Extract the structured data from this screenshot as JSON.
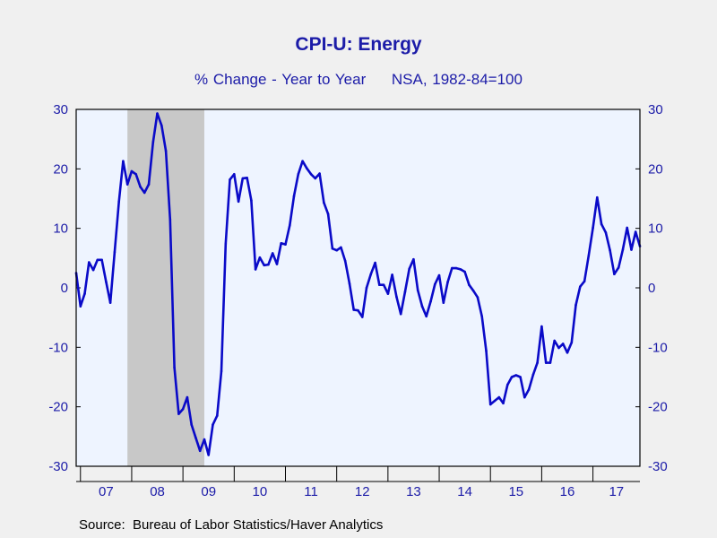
{
  "chart_data": {
    "type": "line",
    "title": "CPI-U: Energy",
    "subtitle": "% Change - Year to Year     NSA, 1982-84=100",
    "source": "Source:  Bureau of Labor Statistics/Haver Analytics",
    "ylim": [
      -30,
      30
    ],
    "yticks": [
      30,
      20,
      10,
      0,
      -10,
      -20,
      -30
    ],
    "ytick_labels": [
      "30",
      "20",
      "10",
      "0",
      "-10",
      "-20",
      "-30"
    ],
    "x_start": "2006-12",
    "x_end": "2017-12",
    "x_categories": [
      "07",
      "08",
      "09",
      "10",
      "11",
      "12",
      "13",
      "14",
      "15",
      "16",
      "17"
    ],
    "recession_shading": [
      {
        "start": "2007-12",
        "end": "2009-06"
      }
    ],
    "grid": false,
    "colors": {
      "line": "#0a0ac8",
      "text": "#1c1ca8",
      "plot_bg": "#eef4ff",
      "recession": "#c8c8c8",
      "page_bg": "#f0f0f0"
    },
    "series": [
      {
        "dates": [
          "2006-12",
          "2007-01",
          "2007-02",
          "2007-03",
          "2007-04",
          "2007-05",
          "2007-06",
          "2007-07",
          "2007-08",
          "2007-09",
          "2007-10",
          "2007-11",
          "2007-12",
          "2008-01",
          "2008-02",
          "2008-03",
          "2008-04",
          "2008-05",
          "2008-06",
          "2008-07",
          "2008-08",
          "2008-09",
          "2008-10",
          "2008-11",
          "2008-12",
          "2009-01",
          "2009-02",
          "2009-03",
          "2009-04",
          "2009-05",
          "2009-06",
          "2009-07",
          "2009-08",
          "2009-09",
          "2009-10",
          "2009-11",
          "2009-12",
          "2010-01",
          "2010-02",
          "2010-03",
          "2010-04",
          "2010-05",
          "2010-06",
          "2010-07",
          "2010-08",
          "2010-09",
          "2010-10",
          "2010-11",
          "2010-12",
          "2011-01",
          "2011-02",
          "2011-03",
          "2011-04",
          "2011-05",
          "2011-06",
          "2011-07",
          "2011-08",
          "2011-09",
          "2011-10",
          "2011-11",
          "2011-12",
          "2012-01",
          "2012-02",
          "2012-03",
          "2012-04",
          "2012-05",
          "2012-06",
          "2012-07",
          "2012-08",
          "2012-09",
          "2012-10",
          "2012-11",
          "2012-12",
          "2013-01",
          "2013-02",
          "2013-03",
          "2013-04",
          "2013-05",
          "2013-06",
          "2013-07",
          "2013-08",
          "2013-09",
          "2013-10",
          "2013-11",
          "2013-12",
          "2014-01",
          "2014-02",
          "2014-03",
          "2014-04",
          "2014-05",
          "2014-06",
          "2014-07",
          "2014-08",
          "2014-09",
          "2014-10",
          "2014-11",
          "2014-12",
          "2015-01",
          "2015-02",
          "2015-03",
          "2015-04",
          "2015-05",
          "2015-06",
          "2015-07",
          "2015-08",
          "2015-09",
          "2015-10",
          "2015-11",
          "2015-12",
          "2016-01",
          "2016-02",
          "2016-03",
          "2016-04",
          "2016-05",
          "2016-06",
          "2016-07",
          "2016-08",
          "2016-09",
          "2016-10",
          "2016-11",
          "2016-12",
          "2017-01",
          "2017-02",
          "2017-03",
          "2017-04",
          "2017-05",
          "2017-06",
          "2017-07",
          "2017-08",
          "2017-09",
          "2017-10",
          "2017-11",
          "2017-12"
        ],
        "values": [
          2.5,
          -3.1,
          -1.0,
          4.3,
          3.0,
          4.7,
          4.7,
          1.0,
          -2.5,
          6.0,
          14.5,
          21.3,
          17.4,
          19.6,
          19.1,
          17.0,
          16.0,
          17.4,
          24.5,
          29.3,
          27.3,
          23.0,
          11.5,
          -13.4,
          -21.2,
          -20.4,
          -18.4,
          -23.0,
          -25.2,
          -27.4,
          -25.5,
          -28.1,
          -23.0,
          -21.5,
          -14.0,
          7.4,
          18.2,
          19.1,
          14.5,
          18.4,
          18.5,
          14.7,
          3.1,
          5.1,
          3.8,
          3.9,
          5.8,
          4.0,
          7.5,
          7.3,
          10.5,
          15.4,
          19.1,
          21.3,
          20.1,
          19.1,
          18.4,
          19.2,
          14.3,
          12.4,
          6.6,
          6.3,
          6.8,
          4.5,
          0.7,
          -3.7,
          -3.8,
          -4.9,
          0.0,
          2.3,
          4.2,
          0.5,
          0.5,
          -1.0,
          2.2,
          -1.5,
          -4.4,
          -0.7,
          3.2,
          4.8,
          -0.4,
          -3.1,
          -4.8,
          -2.3,
          0.6,
          2.1,
          -2.5,
          1.0,
          3.3,
          3.3,
          3.1,
          2.7,
          0.5,
          -0.5,
          -1.6,
          -4.8,
          -10.6,
          -19.6,
          -19.0,
          -18.4,
          -19.4,
          -16.3,
          -15.0,
          -14.7,
          -15.0,
          -18.4,
          -17.1,
          -14.6,
          -12.6,
          -6.5,
          -12.6,
          -12.6,
          -8.9,
          -10.1,
          -9.4,
          -10.9,
          -9.2,
          -2.9,
          0.2,
          1.1,
          5.4,
          10.1,
          15.2,
          10.7,
          9.3,
          6.3,
          2.3,
          3.4,
          6.4,
          10.1,
          6.4,
          9.4,
          7.0
        ]
      }
    ]
  }
}
